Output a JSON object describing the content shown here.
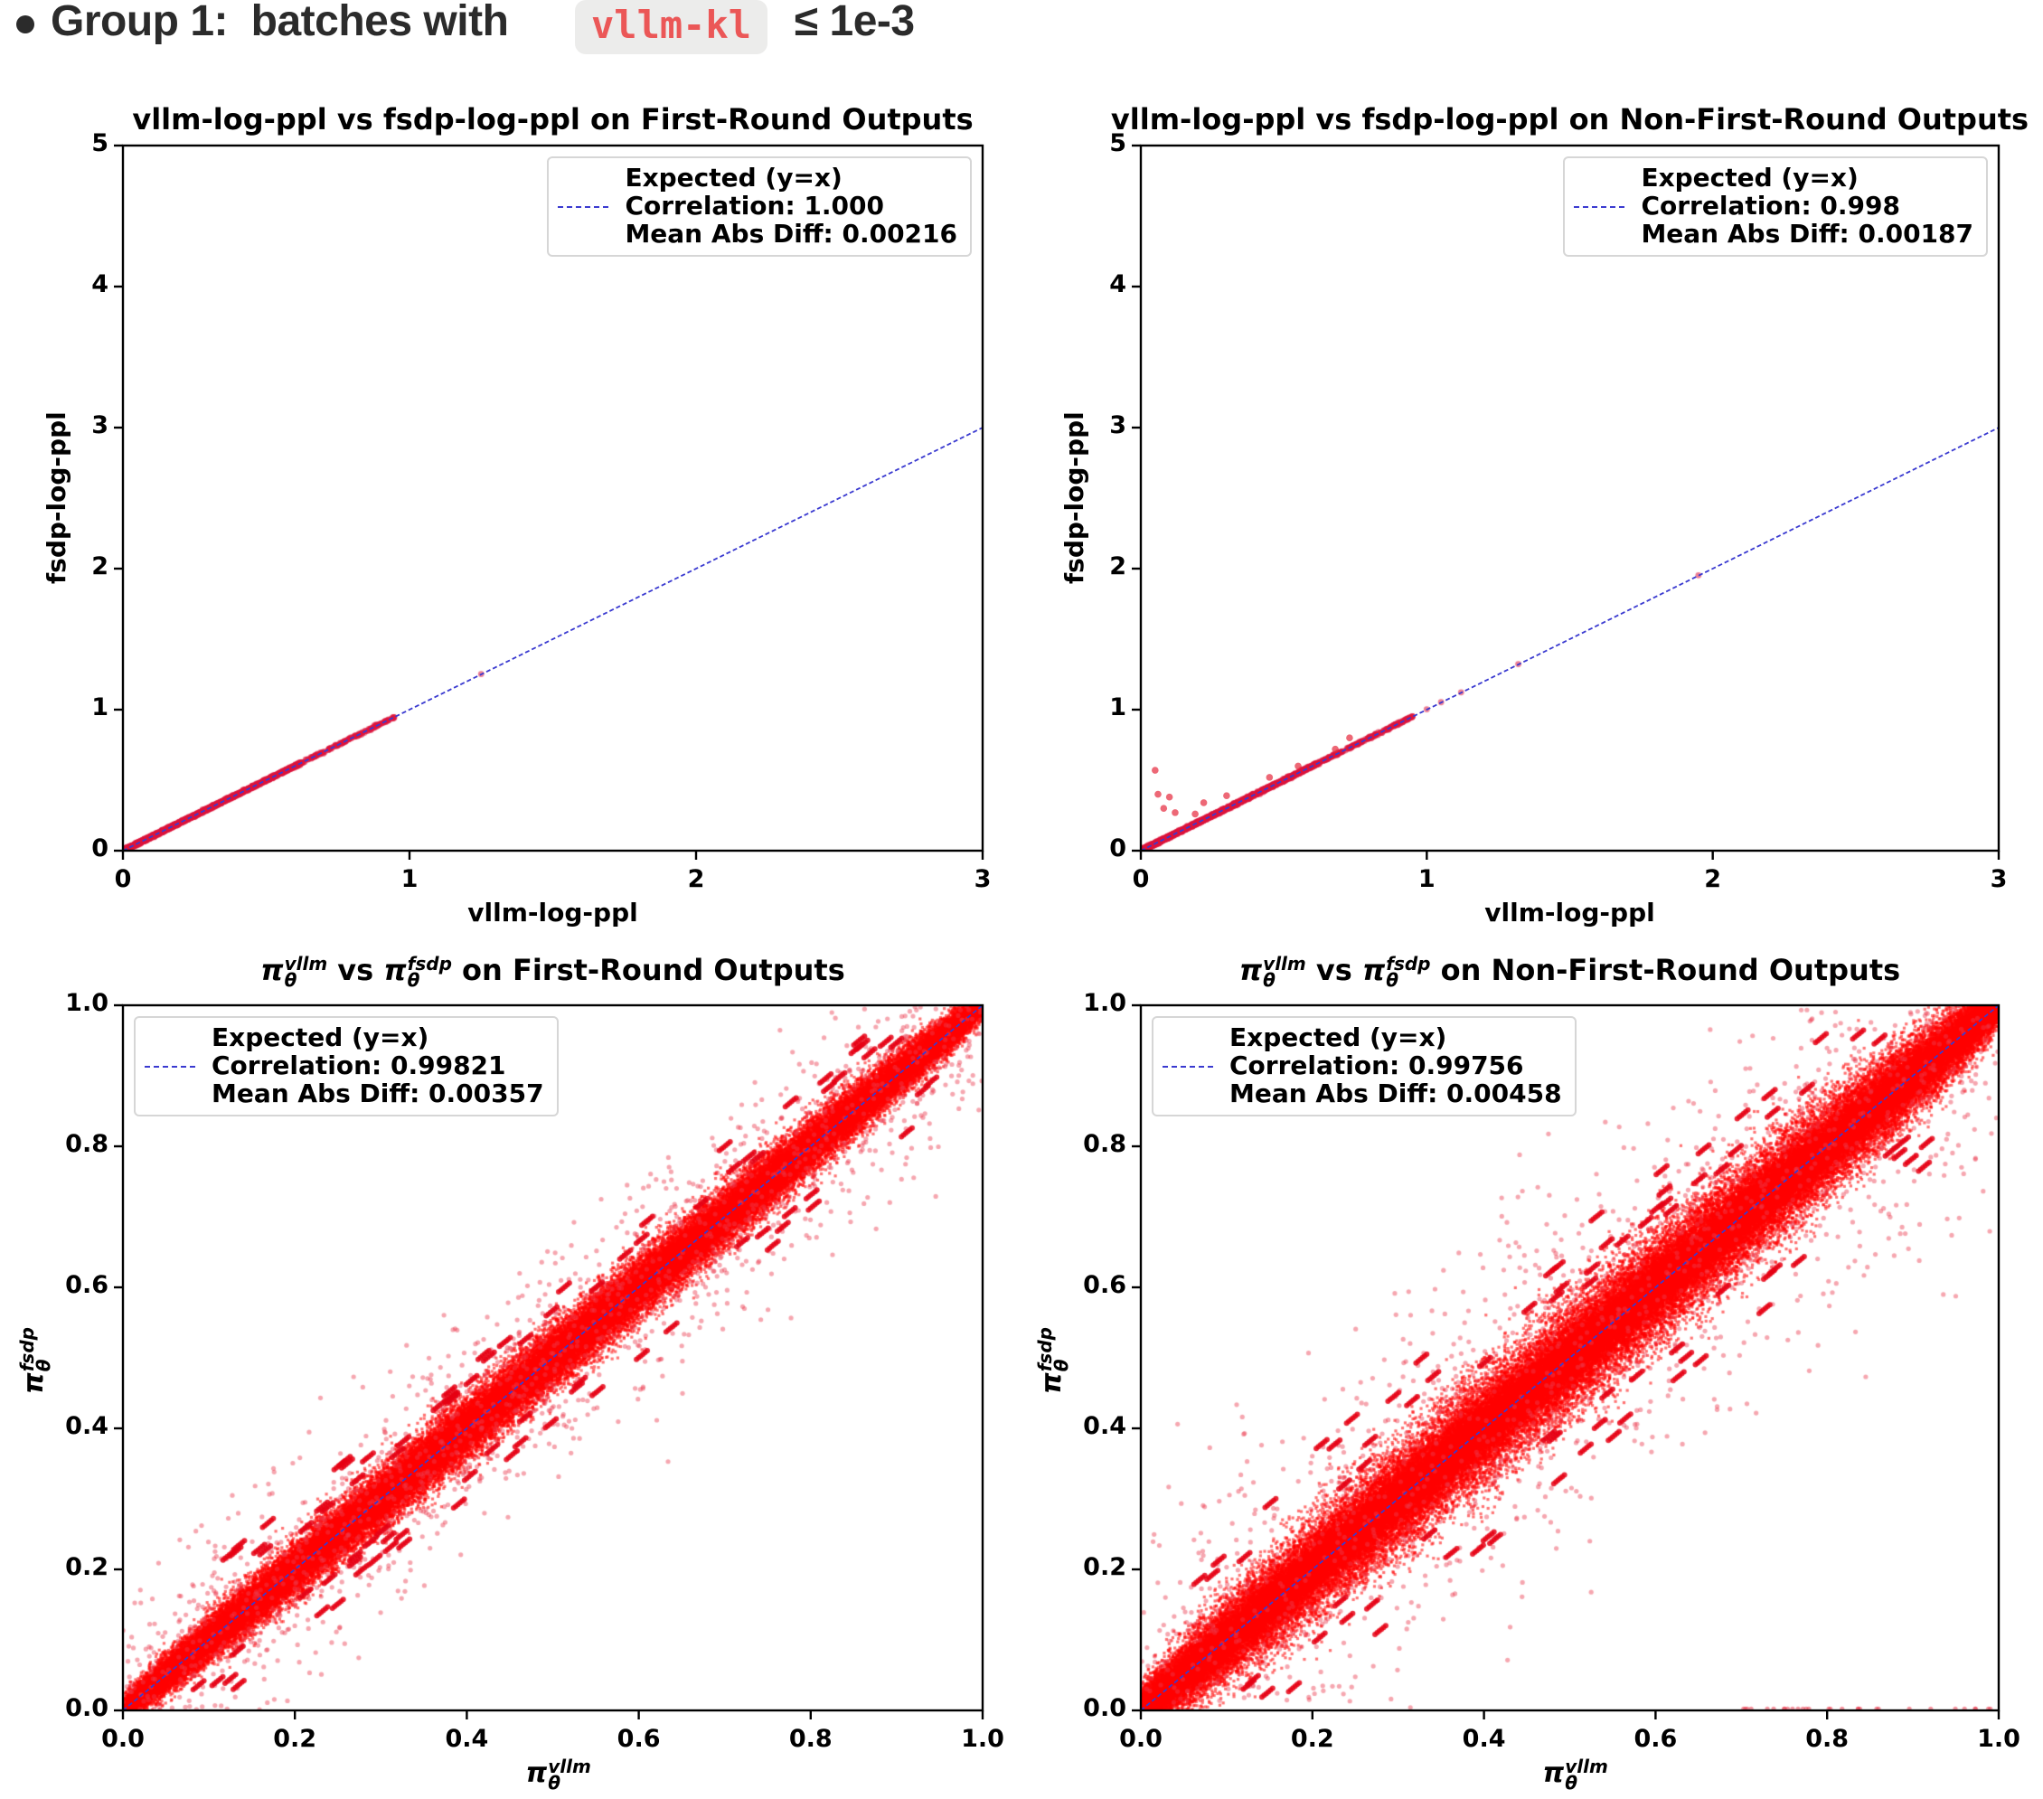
{
  "header": {
    "bullet_icon": "bullet-dot-icon",
    "prefix": "Group 1:  batches with ",
    "code": "vllm-kl",
    "suffix": " ≤ 1e-3",
    "code_color": "#eb5757",
    "code_bg": "#ececeb"
  },
  "colors": {
    "points": "#ff0000",
    "expected_line": "#3a3ad0",
    "axes": "#000000"
  },
  "chart_data": [
    {
      "id": "ppl-first",
      "type": "scatter",
      "title": "vllm-log-ppl vs fsdp-log-ppl on First-Round Outputs",
      "xlabel": "vllm-log-ppl",
      "ylabel": "fsdp-log-ppl",
      "xlim": [
        0,
        3
      ],
      "ylim": [
        0,
        5
      ],
      "xticks": [
        "0",
        "1",
        "2",
        "3"
      ],
      "yticks": [
        "0",
        "1",
        "2",
        "3",
        "4",
        "5"
      ],
      "legend": {
        "position": "upper-right",
        "entries": [
          "Expected (y=x)",
          "Correlation: 1.000",
          "Mean Abs Diff: 0.00216"
        ]
      },
      "reference_line": "y=x",
      "points_range": {
        "x": [
          0,
          1.25
        ],
        "y": [
          0,
          1.25
        ]
      },
      "correlation": 1.0,
      "mean_abs_diff": 0.00216
    },
    {
      "id": "ppl-nonfirst",
      "type": "scatter",
      "title": "vllm-log-ppl vs fsdp-log-ppl on Non-First-Round Outputs",
      "xlabel": "vllm-log-ppl",
      "ylabel": "fsdp-log-ppl",
      "xlim": [
        0,
        3
      ],
      "ylim": [
        0,
        5
      ],
      "xticks": [
        "0",
        "1",
        "2",
        "3"
      ],
      "yticks": [
        "0",
        "1",
        "2",
        "3",
        "4",
        "5"
      ],
      "legend": {
        "position": "upper-right",
        "entries": [
          "Expected (y=x)",
          "Correlation: 0.998",
          "Mean Abs Diff: 0.00187"
        ]
      },
      "reference_line": "y=x",
      "points_range": {
        "x": [
          0,
          1.95
        ],
        "y": [
          0,
          1.95
        ]
      },
      "outliers": [
        [
          0.05,
          0.57
        ],
        [
          0.06,
          0.4
        ],
        [
          0.1,
          0.38
        ],
        [
          0.08,
          0.3
        ],
        [
          0.12,
          0.27
        ],
        [
          0.19,
          0.26
        ],
        [
          0.22,
          0.34
        ],
        [
          0.3,
          0.39
        ],
        [
          0.45,
          0.52
        ],
        [
          0.55,
          0.6
        ],
        [
          0.68,
          0.72
        ],
        [
          0.73,
          0.8
        ]
      ],
      "correlation": 0.998,
      "mean_abs_diff": 0.00187
    },
    {
      "id": "prob-first",
      "type": "scatter",
      "title_parts": [
        "π",
        "θ",
        "vllm",
        " vs ",
        "π",
        "θ",
        "fsdp",
        " on First-Round Outputs"
      ],
      "xlabel_parts": [
        "π",
        "θ",
        "vllm"
      ],
      "ylabel_parts": [
        "π",
        "θ",
        "fsdp"
      ],
      "xlim": [
        0,
        1
      ],
      "ylim": [
        0,
        1
      ],
      "xticks": [
        "0.0",
        "0.2",
        "0.4",
        "0.6",
        "0.8",
        "1.0"
      ],
      "yticks": [
        "0.0",
        "0.2",
        "0.4",
        "0.6",
        "0.8",
        "1.0"
      ],
      "legend": {
        "position": "upper-left",
        "entries": [
          "Expected (y=x)",
          "Correlation: 0.99821",
          "Mean Abs Diff: 0.00357"
        ]
      },
      "reference_line": "y=x",
      "spread": 0.035,
      "correlation": 0.99821,
      "mean_abs_diff": 0.00357
    },
    {
      "id": "prob-nonfirst",
      "type": "scatter",
      "title_parts": [
        "π",
        "θ",
        "vllm",
        " vs ",
        "π",
        "θ",
        "fsdp",
        " on Non-First-Round Outputs"
      ],
      "xlabel_parts": [
        "π",
        "θ",
        "vllm"
      ],
      "ylabel_parts": [
        "π",
        "θ",
        "fsdp"
      ],
      "xlim": [
        0,
        1
      ],
      "ylim": [
        0,
        1
      ],
      "xticks": [
        "0.0",
        "0.2",
        "0.4",
        "0.6",
        "0.8",
        "1.0"
      ],
      "yticks": [
        "0.0",
        "0.2",
        "0.4",
        "0.6",
        "0.8",
        "1.0"
      ],
      "legend": {
        "position": "upper-left",
        "entries": [
          "Expected (y=x)",
          "Correlation: 0.99756",
          "Mean Abs Diff: 0.00458"
        ]
      },
      "reference_line": "y=x",
      "spread": 0.06,
      "correlation": 0.99756,
      "mean_abs_diff": 0.00458
    }
  ]
}
